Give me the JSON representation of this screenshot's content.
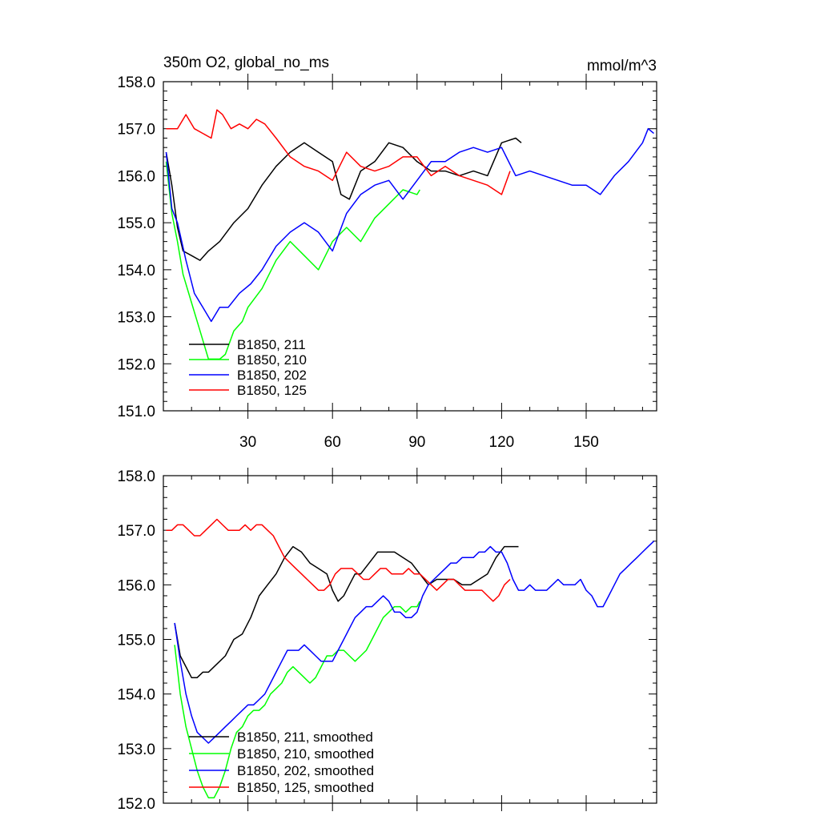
{
  "colors": {
    "black": "#000000",
    "green": "#00ff00",
    "blue": "#0000ff",
    "red": "#ff0000"
  },
  "chart_data": [
    {
      "type": "line",
      "title_left": "350m O2, global_no_ms",
      "title_right": "mmol/m^3",
      "xlabel": "",
      "ylabel": "",
      "xlim": [
        0,
        175
      ],
      "ylim": [
        151.0,
        158.0
      ],
      "yticks": [
        "151.0",
        "152.0",
        "153.0",
        "154.0",
        "155.0",
        "156.0",
        "157.0",
        "158.0"
      ],
      "xticks": [
        "30",
        "60",
        "90",
        "120",
        "150"
      ],
      "legend_position": "bottom-left",
      "series": [
        {
          "name": "B1850, 211",
          "color": "black",
          "x": [
            1,
            3,
            5,
            7,
            10,
            13,
            16,
            20,
            25,
            30,
            35,
            40,
            45,
            50,
            55,
            60,
            63,
            66,
            70,
            75,
            80,
            85,
            90,
            95,
            100,
            105,
            110,
            115,
            120,
            125,
            127
          ],
          "y": [
            156.5,
            155.8,
            154.9,
            154.4,
            154.3,
            154.2,
            154.4,
            154.6,
            155.0,
            155.3,
            155.8,
            156.2,
            156.5,
            156.7,
            156.5,
            156.3,
            155.6,
            155.5,
            156.1,
            156.3,
            156.7,
            156.6,
            156.3,
            156.1,
            156.1,
            156.0,
            156.1,
            156.0,
            156.7,
            156.8,
            156.7
          ]
        },
        {
          "name": "B1850, 210",
          "color": "green",
          "x": [
            1,
            3,
            5,
            7,
            10,
            13,
            16,
            18,
            20,
            22,
            25,
            28,
            30,
            35,
            40,
            45,
            50,
            55,
            60,
            65,
            70,
            75,
            80,
            85,
            90,
            91
          ],
          "y": [
            156.3,
            155.2,
            154.6,
            153.9,
            153.3,
            152.7,
            152.1,
            152.1,
            152.1,
            152.2,
            152.7,
            152.9,
            153.2,
            153.6,
            154.2,
            154.6,
            154.3,
            154.0,
            154.6,
            154.9,
            154.6,
            155.1,
            155.4,
            155.7,
            155.6,
            155.7
          ]
        },
        {
          "name": "B1850, 202",
          "color": "blue",
          "x": [
            1,
            3,
            5,
            8,
            11,
            14,
            17,
            20,
            23,
            27,
            31,
            35,
            40,
            45,
            50,
            55,
            60,
            65,
            70,
            75,
            80,
            85,
            90,
            95,
            100,
            105,
            110,
            115,
            120,
            125,
            130,
            135,
            140,
            145,
            150,
            155,
            160,
            165,
            170,
            172,
            174
          ],
          "y": [
            156.5,
            155.3,
            155.0,
            154.2,
            153.5,
            153.2,
            152.9,
            153.2,
            153.2,
            153.5,
            153.7,
            154.0,
            154.5,
            154.8,
            155.0,
            154.8,
            154.4,
            155.2,
            155.6,
            155.8,
            155.9,
            155.5,
            155.9,
            156.3,
            156.3,
            156.5,
            156.6,
            156.5,
            156.6,
            156.0,
            156.1,
            156.0,
            155.9,
            155.8,
            155.8,
            155.6,
            156.0,
            156.3,
            156.7,
            157.0,
            156.9
          ]
        },
        {
          "name": "B1850, 125",
          "color": "red",
          "x": [
            1,
            5,
            8,
            11,
            14,
            17,
            19,
            21,
            24,
            27,
            30,
            33,
            36,
            40,
            45,
            50,
            55,
            60,
            65,
            70,
            75,
            80,
            85,
            90,
            95,
            100,
            105,
            110,
            115,
            120,
            123
          ],
          "y": [
            157.0,
            157.0,
            157.3,
            157.0,
            156.9,
            156.8,
            157.4,
            157.3,
            157.0,
            157.1,
            157.0,
            157.2,
            157.1,
            156.8,
            156.4,
            156.2,
            156.1,
            155.9,
            156.5,
            156.2,
            156.1,
            156.2,
            156.4,
            156.4,
            156.0,
            156.2,
            156.0,
            155.9,
            155.8,
            155.6,
            156.1
          ]
        }
      ]
    },
    {
      "type": "line",
      "xlabel": "",
      "ylabel": "",
      "xlim": [
        0,
        175
      ],
      "ylim": [
        152.0,
        158.0
      ],
      "yticks": [
        "152.0",
        "153.0",
        "154.0",
        "155.0",
        "156.0",
        "157.0",
        "158.0"
      ],
      "legend_position": "bottom-left",
      "series": [
        {
          "name": "B1850, 211, smoothed",
          "color": "black",
          "x": [
            4,
            6,
            8,
            10,
            12,
            14,
            16,
            18,
            20,
            22,
            25,
            28,
            31,
            34,
            37,
            40,
            43,
            46,
            49,
            52,
            55,
            58,
            60,
            62,
            64,
            66,
            68,
            70,
            73,
            76,
            79,
            82,
            85,
            88,
            91,
            94,
            97,
            100,
            103,
            106,
            109,
            112,
            115,
            118,
            121,
            124,
            126
          ],
          "y": [
            155.3,
            154.7,
            154.5,
            154.3,
            154.3,
            154.4,
            154.4,
            154.5,
            154.6,
            154.7,
            155.0,
            155.1,
            155.4,
            155.8,
            156.0,
            156.2,
            156.5,
            156.7,
            156.6,
            156.4,
            156.3,
            156.2,
            155.9,
            155.7,
            155.8,
            156.0,
            156.2,
            156.2,
            156.4,
            156.6,
            156.6,
            156.6,
            156.5,
            156.4,
            156.2,
            156.0,
            156.1,
            156.1,
            156.1,
            156.0,
            156.0,
            156.1,
            156.2,
            156.5,
            156.7,
            156.7,
            156.7
          ]
        },
        {
          "name": "B1850, 210, smoothed",
          "color": "green",
          "x": [
            4,
            6,
            8,
            10,
            12,
            14,
            16,
            17,
            18,
            20,
            22,
            24,
            26,
            28,
            30,
            32,
            34,
            36,
            38,
            40,
            42,
            44,
            46,
            48,
            50,
            52,
            54,
            56,
            58,
            60,
            62,
            64,
            66,
            68,
            70,
            72,
            74,
            76,
            78,
            80,
            82,
            84,
            86,
            88,
            90,
            91
          ],
          "y": [
            154.9,
            154.0,
            153.4,
            153.0,
            152.6,
            152.3,
            152.1,
            152.1,
            152.1,
            152.3,
            152.6,
            153.0,
            153.3,
            153.4,
            153.6,
            153.7,
            153.7,
            153.8,
            154.0,
            154.1,
            154.2,
            154.4,
            154.5,
            154.4,
            154.3,
            154.2,
            154.3,
            154.5,
            154.7,
            154.7,
            154.8,
            154.8,
            154.7,
            154.6,
            154.7,
            154.8,
            155.0,
            155.2,
            155.4,
            155.5,
            155.6,
            155.6,
            155.5,
            155.6,
            155.6,
            155.7
          ]
        },
        {
          "name": "B1850, 202, smoothed",
          "color": "blue",
          "x": [
            4,
            6,
            8,
            10,
            12,
            14,
            16,
            18,
            20,
            22,
            24,
            26,
            28,
            30,
            32,
            34,
            36,
            38,
            40,
            42,
            44,
            46,
            48,
            50,
            52,
            54,
            56,
            58,
            60,
            62,
            64,
            66,
            68,
            70,
            72,
            74,
            76,
            78,
            80,
            82,
            84,
            86,
            88,
            90,
            92,
            94,
            96,
            98,
            100,
            102,
            104,
            106,
            108,
            110,
            112,
            114,
            116,
            118,
            120,
            122,
            124,
            126,
            128,
            130,
            132,
            134,
            136,
            138,
            140,
            142,
            144,
            146,
            148,
            150,
            152,
            154,
            156,
            158,
            160,
            162,
            164,
            166,
            168,
            170,
            172,
            174
          ],
          "y": [
            155.3,
            154.6,
            154.0,
            153.6,
            153.3,
            153.2,
            153.1,
            153.2,
            153.3,
            153.4,
            153.5,
            153.6,
            153.7,
            153.8,
            153.8,
            153.9,
            154.0,
            154.2,
            154.4,
            154.6,
            154.8,
            154.8,
            154.8,
            154.9,
            154.8,
            154.7,
            154.6,
            154.6,
            154.6,
            154.8,
            155.0,
            155.2,
            155.4,
            155.5,
            155.6,
            155.6,
            155.7,
            155.8,
            155.7,
            155.5,
            155.5,
            155.4,
            155.4,
            155.5,
            155.8,
            156.0,
            156.1,
            156.2,
            156.3,
            156.4,
            156.4,
            156.5,
            156.5,
            156.5,
            156.6,
            156.6,
            156.7,
            156.6,
            156.6,
            156.4,
            156.1,
            155.9,
            155.9,
            156.0,
            155.9,
            155.9,
            155.9,
            156.0,
            156.1,
            156.0,
            156.0,
            156.0,
            156.1,
            155.9,
            155.8,
            155.6,
            155.6,
            155.8,
            156.0,
            156.2,
            156.3,
            156.4,
            156.5,
            156.6,
            156.7,
            156.8
          ]
        },
        {
          "name": "B1850, 125, smoothed",
          "color": "red",
          "x": [
            1,
            3,
            5,
            7,
            9,
            11,
            13,
            15,
            17,
            19,
            21,
            23,
            25,
            27,
            29,
            31,
            33,
            35,
            37,
            39,
            41,
            43,
            45,
            47,
            49,
            51,
            53,
            55,
            57,
            59,
            61,
            63,
            65,
            67,
            69,
            71,
            73,
            75,
            77,
            79,
            81,
            83,
            85,
            87,
            89,
            91,
            93,
            95,
            97,
            99,
            101,
            103,
            105,
            107,
            109,
            111,
            113,
            115,
            117,
            119,
            121,
            123
          ],
          "y": [
            157.0,
            157.0,
            157.1,
            157.1,
            157.0,
            156.9,
            156.9,
            157.0,
            157.1,
            157.2,
            157.1,
            157.0,
            157.0,
            157.0,
            157.1,
            157.0,
            157.1,
            157.1,
            157.0,
            156.9,
            156.7,
            156.5,
            156.4,
            156.3,
            156.2,
            156.1,
            156.0,
            155.9,
            155.9,
            156.0,
            156.2,
            156.3,
            156.3,
            156.3,
            156.2,
            156.1,
            156.1,
            156.2,
            156.3,
            156.3,
            156.2,
            156.2,
            156.2,
            156.3,
            156.2,
            156.2,
            156.1,
            156.0,
            155.9,
            156.0,
            156.1,
            156.1,
            156.0,
            155.9,
            155.9,
            155.9,
            155.9,
            155.8,
            155.7,
            155.8,
            156.0,
            156.1
          ]
        }
      ]
    }
  ]
}
